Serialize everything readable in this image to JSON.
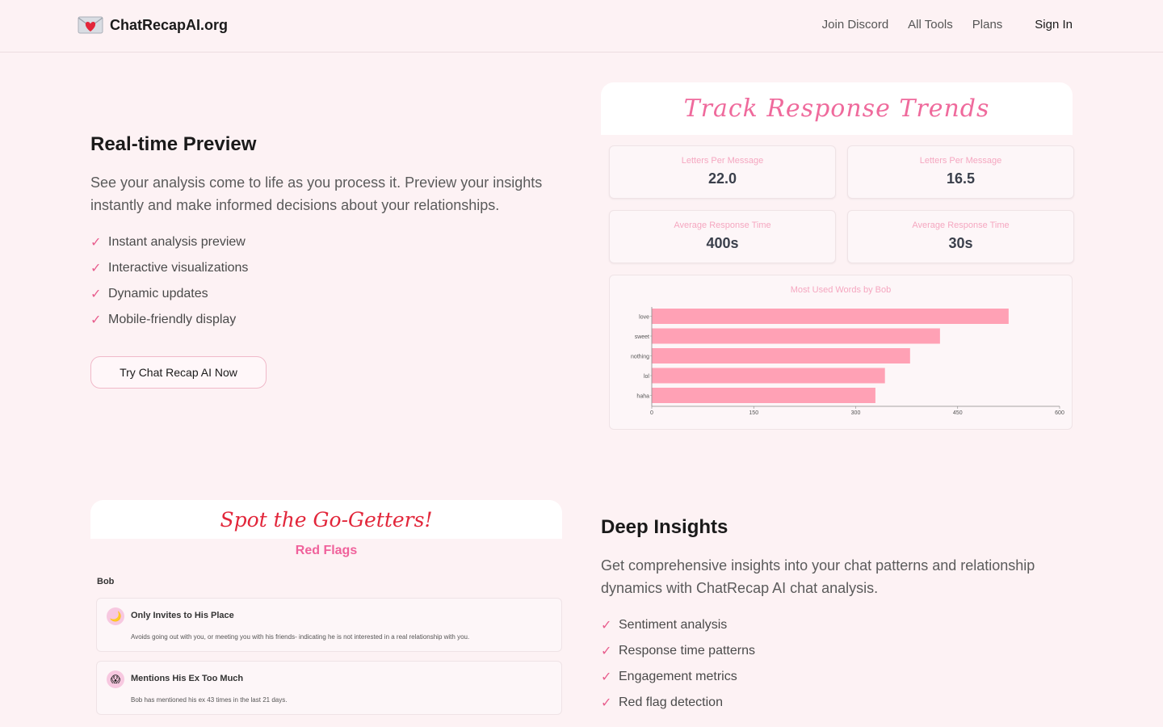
{
  "header": {
    "brand": "ChatRecapAI.org",
    "nav": [
      "Join Discord",
      "All Tools",
      "Plans"
    ],
    "sign_in": "Sign In"
  },
  "section1": {
    "title": "Real-time Preview",
    "description": "See your analysis come to life as you process it. Preview your insights instantly and make informed decisions about your relationships.",
    "features": [
      "Instant analysis preview",
      "Interactive visualizations",
      "Dynamic updates",
      "Mobile-friendly display"
    ],
    "cta": "Try Chat Recap AI Now"
  },
  "trends": {
    "title": "Track Response Trends",
    "stats": [
      {
        "label": "Letters Per Message",
        "value": "22.0"
      },
      {
        "label": "Letters Per Message",
        "value": "16.5"
      },
      {
        "label": "Average Response Time",
        "value": "400s"
      },
      {
        "label": "Average Response Time",
        "value": "30s"
      }
    ]
  },
  "chart_data": {
    "type": "bar",
    "orientation": "horizontal",
    "title": "Most Used Words by Bob",
    "categories": [
      "love",
      "sweet",
      "nothing",
      "lol",
      "haha"
    ],
    "values": [
      525,
      424,
      380,
      343,
      329
    ],
    "xlim": [
      0,
      600
    ],
    "xticks": [
      0,
      150,
      300,
      450,
      600
    ],
    "color": "#ffa1b5",
    "grid": false
  },
  "section2": {
    "title": "Deep Insights",
    "description": "Get comprehensive insights into your chat patterns and relationship dynamics with ChatRecap AI chat analysis.",
    "features": [
      "Sentiment analysis",
      "Response time patterns",
      "Engagement metrics",
      "Red flag detection"
    ]
  },
  "flags": {
    "title": "Spot the Go-Getters!",
    "subtitle": "Red Flags",
    "person": "Bob",
    "items": [
      {
        "title": "Only Invites to His Place",
        "desc": "Avoids going out with you, or meeting you with his friends- indicating he is not interested in a real relationship with you.",
        "icon": "moon-icon"
      },
      {
        "title": "Mentions His Ex Too Much",
        "desc": "Bob has mentioned his ex 43 times in the last 21 days.",
        "icon": "scream-face-icon"
      }
    ]
  },
  "colors": {
    "accent": "#e85d8d",
    "background": "#fdf2f4",
    "bar": "#ffa1b5",
    "red_title": "#e2263a"
  }
}
